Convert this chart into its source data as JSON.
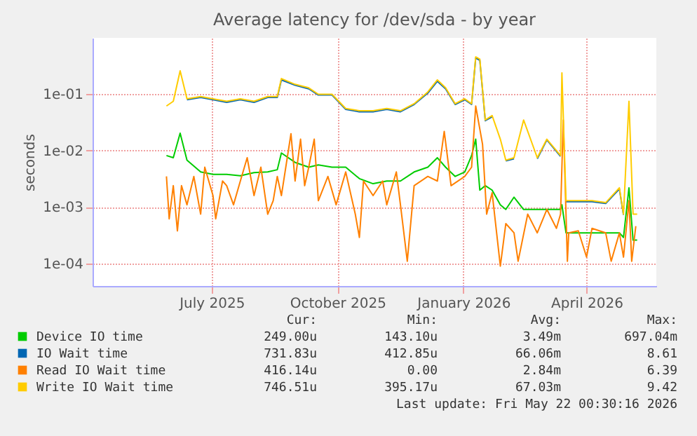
{
  "chart_data": {
    "type": "line",
    "title": "Average latency for /dev/sda - by year",
    "ylabel": "seconds",
    "log": true,
    "grid": true,
    "legend": "bottom",
    "line_style": "solid",
    "marker": "none",
    "xlim": [
      "2025-04-05",
      "2026-05-22"
    ],
    "xticks": [
      {
        "value": "2025-07-01",
        "label": "July 2025"
      },
      {
        "value": "2025-10-01",
        "label": "October 2025"
      },
      {
        "value": "2026-01-01",
        "label": "January 2026"
      },
      {
        "value": "2026-04-01",
        "label": "April 2026"
      }
    ],
    "ylim": [
      4e-05,
      1.0
    ],
    "yticks": [
      {
        "value": 0.0001,
        "label": "1e-04"
      },
      {
        "value": 0.001,
        "label": "1e-03"
      },
      {
        "value": 0.01,
        "label": "1e-02"
      },
      {
        "value": 0.1,
        "label": "1e-01"
      }
    ],
    "x": [
      "2025-05-29",
      "2025-06-03",
      "2025-06-08",
      "2025-06-13",
      "2025-06-23",
      "2025-07-02",
      "2025-07-12",
      "2025-07-22",
      "2025-08-01",
      "2025-08-11",
      "2025-08-18",
      "2025-08-21",
      "2025-08-31",
      "2025-09-10",
      "2025-09-17",
      "2025-09-27",
      "2025-10-07",
      "2025-10-17",
      "2025-10-27",
      "2025-11-06",
      "2025-11-16",
      "2025-11-26",
      "2025-12-06",
      "2025-12-13",
      "2025-12-19",
      "2025-12-26",
      "2026-01-02",
      "2026-01-07",
      "2026-01-10",
      "2026-01-13",
      "2026-01-17",
      "2026-01-22",
      "2026-01-28",
      "2026-02-01",
      "2026-02-07",
      "2026-02-14",
      "2026-02-24",
      "2026-03-03",
      "2026-03-13",
      "2026-03-14",
      "2026-03-17",
      "2026-03-26",
      "2026-04-05",
      "2026-04-15",
      "2026-04-25",
      "2026-04-28",
      "2026-05-02",
      "2026-05-05",
      "2026-05-08"
    ],
    "series": [
      {
        "name": "Device IO time",
        "color": "#00cc00",
        "values": [
          0.0082,
          0.0075,
          0.0204,
          0.0068,
          0.0042,
          0.0038,
          0.0038,
          0.0036,
          0.0041,
          0.0042,
          0.0046,
          0.0091,
          0.0062,
          0.0051,
          0.0056,
          0.0051,
          0.0051,
          0.0032,
          0.0026,
          0.0029,
          0.0029,
          0.0042,
          0.0051,
          0.0075,
          0.0051,
          0.0035,
          0.0042,
          0.0082,
          0.016,
          0.002,
          0.0024,
          0.002,
          0.0011,
          0.00091,
          0.0015,
          0.00091,
          0.00091,
          0.00091,
          0.00091,
          0.0011,
          0.00035,
          0.00035,
          0.00035,
          0.00035,
          0.00035,
          0.00029,
          0.0022,
          0.00026,
          0.00026
        ]
      },
      {
        "name": "IO Wait time",
        "color": "#0066b3",
        "values": [
          null,
          null,
          null,
          0.08,
          0.088,
          0.08,
          0.072,
          0.08,
          0.072,
          0.088,
          0.088,
          0.18,
          0.145,
          0.125,
          0.097,
          0.097,
          0.054,
          0.049,
          0.049,
          0.054,
          0.049,
          0.066,
          0.105,
          0.17,
          0.125,
          0.066,
          0.08,
          0.066,
          0.44,
          0.4,
          0.034,
          0.04,
          null,
          0.0066,
          0.0072,
          null,
          0.0072,
          0.0155,
          0.0079,
          null,
          0.00125,
          0.00125,
          0.00125,
          0.00116,
          0.0021,
          0.00073,
          null,
          null,
          null
        ]
      },
      {
        "name": "Read IO Wait time",
        "color": "#ff8000",
        "x": [
          "2025-05-29",
          "2025-05-31",
          "2025-06-03",
          "2025-06-06",
          "2025-06-09",
          "2025-06-13",
          "2025-06-18",
          "2025-06-23",
          "2025-06-26",
          "2025-07-02",
          "2025-07-04",
          "2025-07-09",
          "2025-07-12",
          "2025-07-17",
          "2025-07-22",
          "2025-07-27",
          "2025-08-01",
          "2025-08-06",
          "2025-08-11",
          "2025-08-15",
          "2025-08-18",
          "2025-08-21",
          "2025-08-28",
          "2025-08-31",
          "2025-09-04",
          "2025-09-07",
          "2025-09-10",
          "2025-09-14",
          "2025-09-17",
          "2025-09-24",
          "2025-09-30",
          "2025-10-07",
          "2025-10-14",
          "2025-10-17",
          "2025-10-20",
          "2025-10-27",
          "2025-11-03",
          "2025-11-06",
          "2025-11-13",
          "2025-11-16",
          "2025-11-21",
          "2025-11-26",
          "2025-12-06",
          "2025-12-13",
          "2025-12-18",
          "2025-12-23",
          "2026-01-02",
          "2026-01-07",
          "2026-01-10",
          "2026-01-15",
          "2026-01-18",
          "2026-01-22",
          "2026-01-28",
          "2026-02-01",
          "2026-02-07",
          "2026-02-10",
          "2026-02-17",
          "2026-02-24",
          "2026-03-03",
          "2026-03-10",
          "2026-03-13",
          "2026-03-15",
          "2026-03-18",
          "2026-03-19",
          "2026-03-26",
          "2026-04-01",
          "2026-04-05",
          "2026-04-15",
          "2026-04-19",
          "2026-04-25",
          "2026-04-28",
          "2026-05-02",
          "2026-05-04",
          "2026-05-07"
        ],
        "values": [
          0.0035,
          0.00062,
          0.0024,
          0.00038,
          0.0024,
          0.0011,
          0.0035,
          0.00075,
          0.0051,
          0.0016,
          0.00062,
          0.0029,
          0.0024,
          0.0011,
          0.0029,
          0.0075,
          0.0016,
          0.0051,
          0.00075,
          0.0013,
          0.0035,
          0.0016,
          0.02,
          0.0029,
          0.016,
          0.0024,
          0.0051,
          0.016,
          0.0013,
          0.0035,
          0.0011,
          0.0042,
          0.00075,
          0.00029,
          0.0029,
          0.0016,
          0.0029,
          0.0011,
          0.0042,
          0.0011,
          0.00011,
          0.0024,
          0.0035,
          0.0029,
          0.022,
          0.0024,
          0.0035,
          0.0051,
          0.062,
          0.013,
          0.00075,
          0.0018,
          9e-05,
          0.00051,
          0.00035,
          0.00011,
          0.00075,
          0.00035,
          0.00091,
          0.00042,
          0.00075,
          0.035,
          0.00011,
          0.00035,
          0.00038,
          0.00013,
          0.00042,
          0.00035,
          0.00011,
          0.00035,
          0.00013,
          0.0013,
          0.00011,
          0.00046
        ]
      },
      {
        "name": "Write IO Wait time",
        "color": "#ffcc00",
        "values": [
          0.062,
          0.075,
          0.26,
          0.083,
          0.091,
          0.083,
          0.075,
          0.083,
          0.075,
          0.091,
          0.091,
          0.19,
          0.15,
          0.13,
          0.1,
          0.1,
          0.056,
          0.051,
          0.051,
          0.056,
          0.051,
          0.068,
          0.11,
          0.18,
          0.13,
          0.068,
          0.083,
          0.068,
          0.46,
          0.42,
          0.035,
          0.042,
          0.016,
          0.0068,
          0.0075,
          0.035,
          0.0075,
          0.016,
          0.0082,
          0.24,
          0.0013,
          0.0013,
          0.0013,
          0.0012,
          0.0022,
          0.00075,
          0.075,
          0.00075,
          0.00075
        ]
      }
    ],
    "annotations": [
      "Cur:",
      "Min:",
      "Avg:",
      "Max:",
      "249.00u",
      "143.10u",
      "3.49m",
      "697.04m",
      "731.83u",
      "412.85u",
      "66.06m",
      "8.61",
      "416.14u",
      "0.00",
      "2.84m",
      "6.39",
      "746.51u",
      "395.17u",
      "67.03m",
      "9.42",
      "Last update: Fri May 22 00:30:16 2026"
    ]
  }
}
